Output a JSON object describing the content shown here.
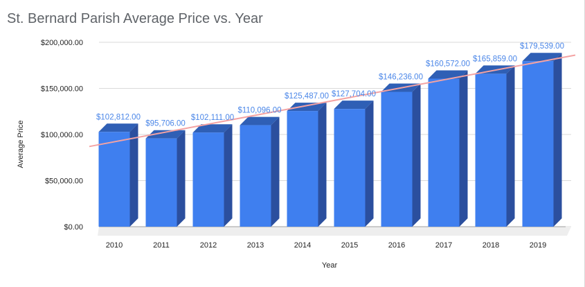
{
  "chart_data": {
    "type": "bar",
    "title": "St. Bernard Parish Average Price vs. Year",
    "xlabel": "Year",
    "ylabel": "Average Price",
    "categories": [
      "2010",
      "2011",
      "2012",
      "2013",
      "2014",
      "2015",
      "2016",
      "2017",
      "2018",
      "2019"
    ],
    "values": [
      102812,
      95706,
      102111,
      110096,
      125487,
      127704,
      146236,
      160572,
      165859,
      179539
    ],
    "data_labels": [
      "$102,812.00",
      "$95,706.00",
      "$102,111.00",
      "$110,096.00",
      "$125,487.00",
      "$127,704.00",
      "$146,236.00",
      "$160,572.00",
      "$165,859.00",
      "$179,539.00"
    ],
    "ylim": [
      0,
      200000
    ],
    "yticks": [
      0,
      50000,
      100000,
      150000,
      200000
    ],
    "ytick_labels": [
      "$0.00",
      "$50,000.00",
      "$100,000.00",
      "$150,000.00",
      "$200,000.00"
    ],
    "grid": true,
    "style": "3d",
    "trendline": {
      "type": "linear",
      "color": "#f4a3a3"
    },
    "colors": {
      "bar_front": "#3f7fef",
      "bar_side": "#2b4f9e",
      "bar_top": "#2f5fb5",
      "label": "#4a86e8",
      "grid": "#d9d9d9",
      "title": "#5f6368"
    }
  }
}
